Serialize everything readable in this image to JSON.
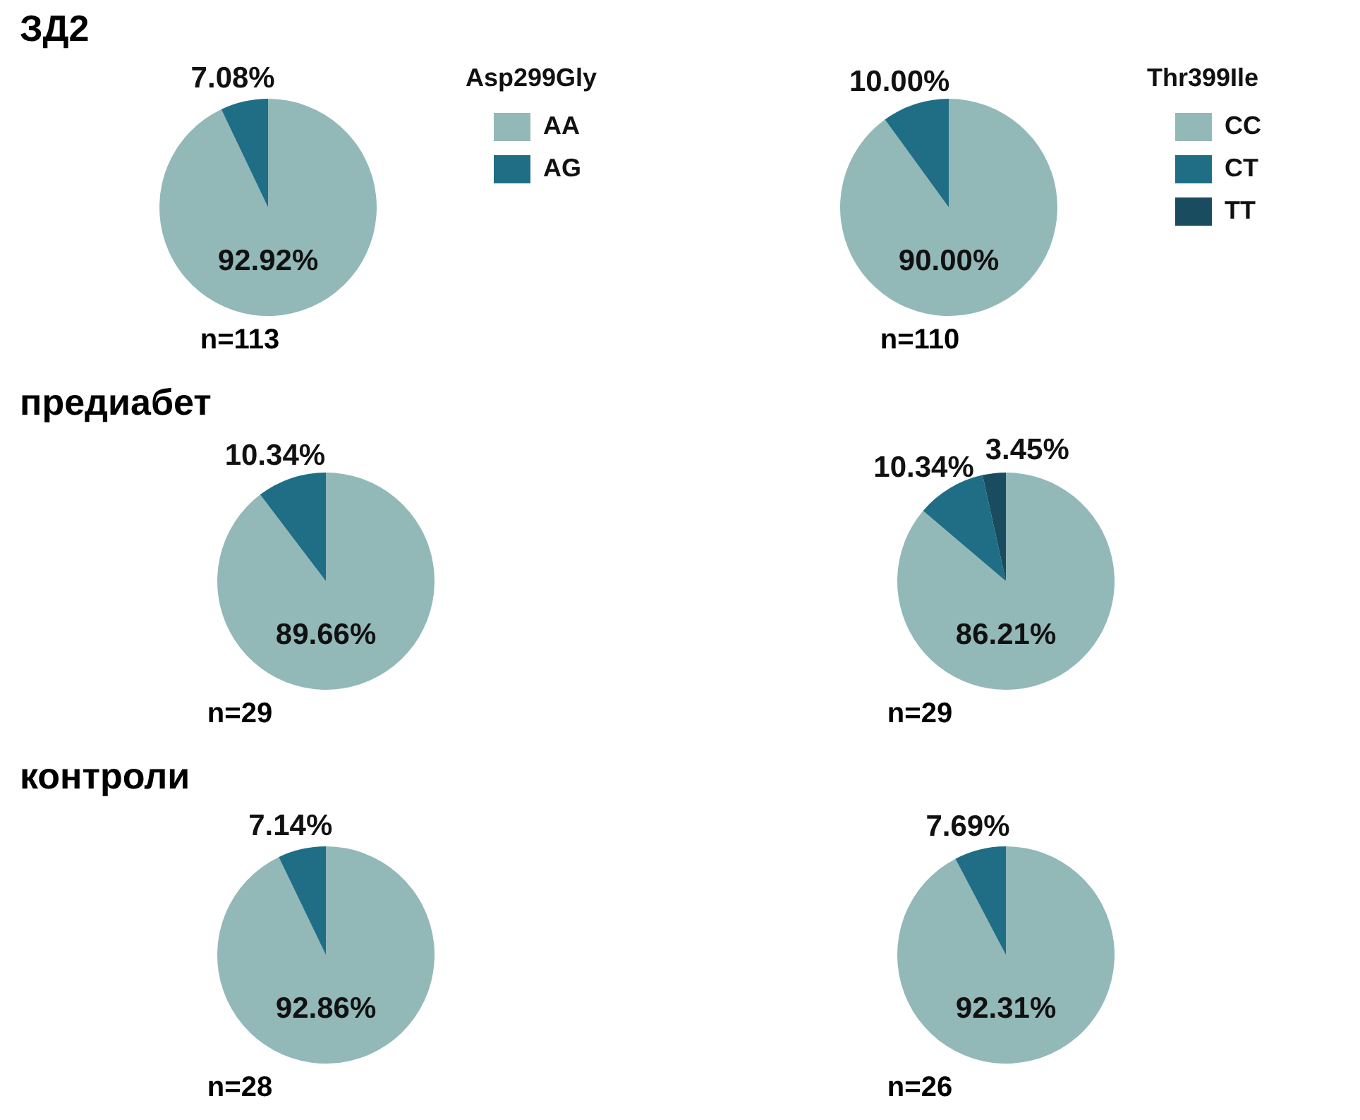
{
  "chart_data": [
    {
      "type": "pie",
      "title": "ЗД2",
      "legend_title": "Asp299Gly",
      "legend": "top right",
      "categories": [
        "AA",
        "AG"
      ],
      "values": [
        92.92,
        7.08
      ],
      "value_labels": [
        "92.92%",
        "7.08%"
      ],
      "colors": [
        "#93b8b8",
        "#1f6e86"
      ],
      "annotations": [
        "n=113"
      ]
    },
    {
      "type": "pie",
      "legend_title": "Thr399Ile",
      "legend": "top right",
      "categories": [
        "CC",
        "CT",
        "TT"
      ],
      "values": [
        90.0,
        10.0,
        0
      ],
      "value_labels": [
        "90.00%",
        "10.00%",
        null
      ],
      "colors": [
        "#93b8b8",
        "#1f6e86",
        "#184c5e"
      ],
      "annotations": [
        "n=110"
      ]
    },
    {
      "type": "pie",
      "title": "предиабет",
      "categories": [
        null,
        null
      ],
      "values": [
        89.66,
        10.34
      ],
      "value_labels": [
        "89.66%",
        "10.34%"
      ],
      "colors": [
        "#93b8b8",
        "#1f6e86"
      ],
      "annotations": [
        "n=29"
      ]
    },
    {
      "type": "pie",
      "categories": [
        null,
        null,
        null
      ],
      "values": [
        86.21,
        10.34,
        3.45
      ],
      "value_labels": [
        "86.21%",
        "10.34%",
        "3.45%"
      ],
      "colors": [
        "#93b8b8",
        "#1f6e86",
        "#184c5e"
      ],
      "annotations": [
        "n=29"
      ]
    },
    {
      "type": "pie",
      "title": "контроли",
      "categories": [
        null,
        null
      ],
      "values": [
        92.86,
        7.14
      ],
      "value_labels": [
        "92.86%",
        "7.14%"
      ],
      "colors": [
        "#93b8b8",
        "#1f6e86"
      ],
      "annotations": [
        "n=28"
      ]
    },
    {
      "type": "pie",
      "categories": [
        null,
        null,
        null
      ],
      "values": [
        92.31,
        7.69,
        0
      ],
      "value_labels": [
        "92.31%",
        "7.69%",
        null
      ],
      "colors": [
        "#93b8b8",
        "#1f6e86",
        "#184c5e"
      ],
      "annotations": [
        "n=26"
      ]
    }
  ]
}
